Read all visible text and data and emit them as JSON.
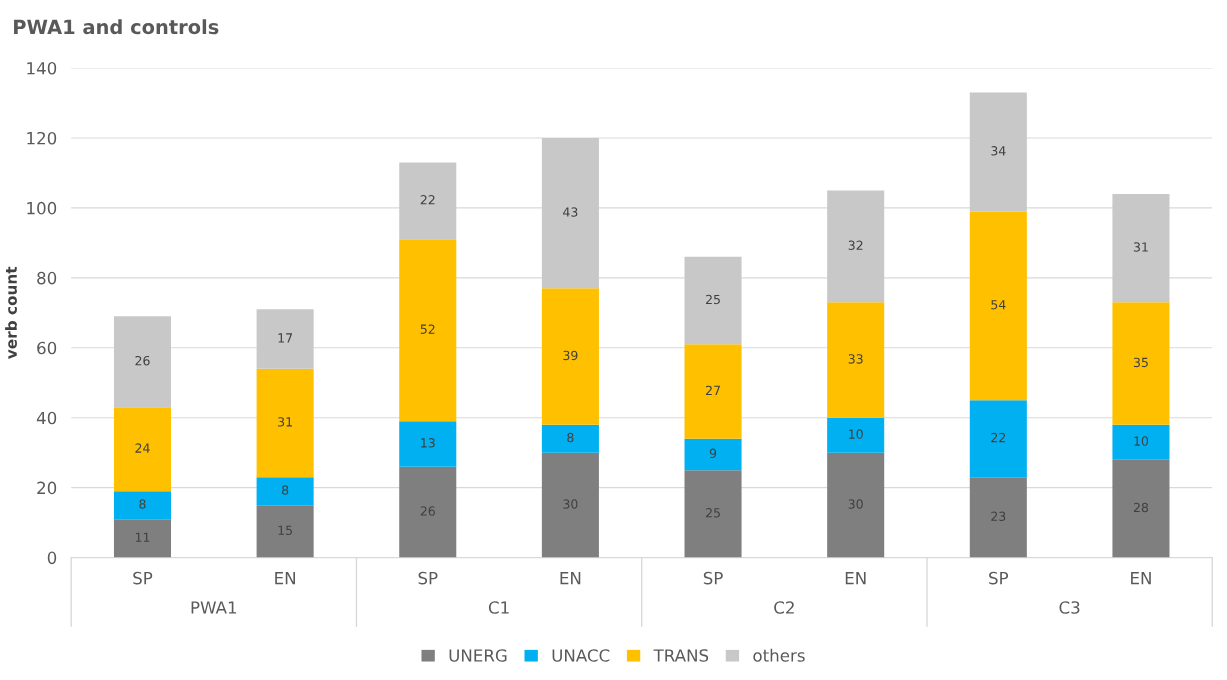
{
  "chart_data": {
    "type": "bar",
    "title": "PWA1 and controls",
    "ylabel": "verb count",
    "categories": [
      "SP",
      "EN",
      "SP",
      "EN",
      "SP",
      "EN",
      "SP",
      "EN"
    ],
    "annotations": [
      "PWA1",
      "C1",
      "C2",
      "C3"
    ],
    "stacked": true,
    "data_labels": true,
    "grid": "y",
    "legend": "bottom",
    "ylim": [
      0,
      140
    ],
    "yticks": [
      0,
      20,
      40,
      60,
      80,
      100,
      120,
      140
    ],
    "series": [
      {
        "name": "UNERG",
        "color": "#7f7f7f",
        "values": [
          11,
          15,
          26,
          30,
          25,
          30,
          23,
          28
        ]
      },
      {
        "name": "UNACC",
        "color": "#00b0f0",
        "values": [
          8,
          8,
          13,
          8,
          9,
          10,
          22,
          10
        ]
      },
      {
        "name": "TRANS",
        "color": "#ffc000",
        "values": [
          24,
          31,
          52,
          39,
          27,
          33,
          54,
          35
        ]
      },
      {
        "name": "others",
        "color": "#c8c8c8",
        "values": [
          26,
          17,
          22,
          43,
          25,
          32,
          34,
          31
        ]
      }
    ]
  }
}
